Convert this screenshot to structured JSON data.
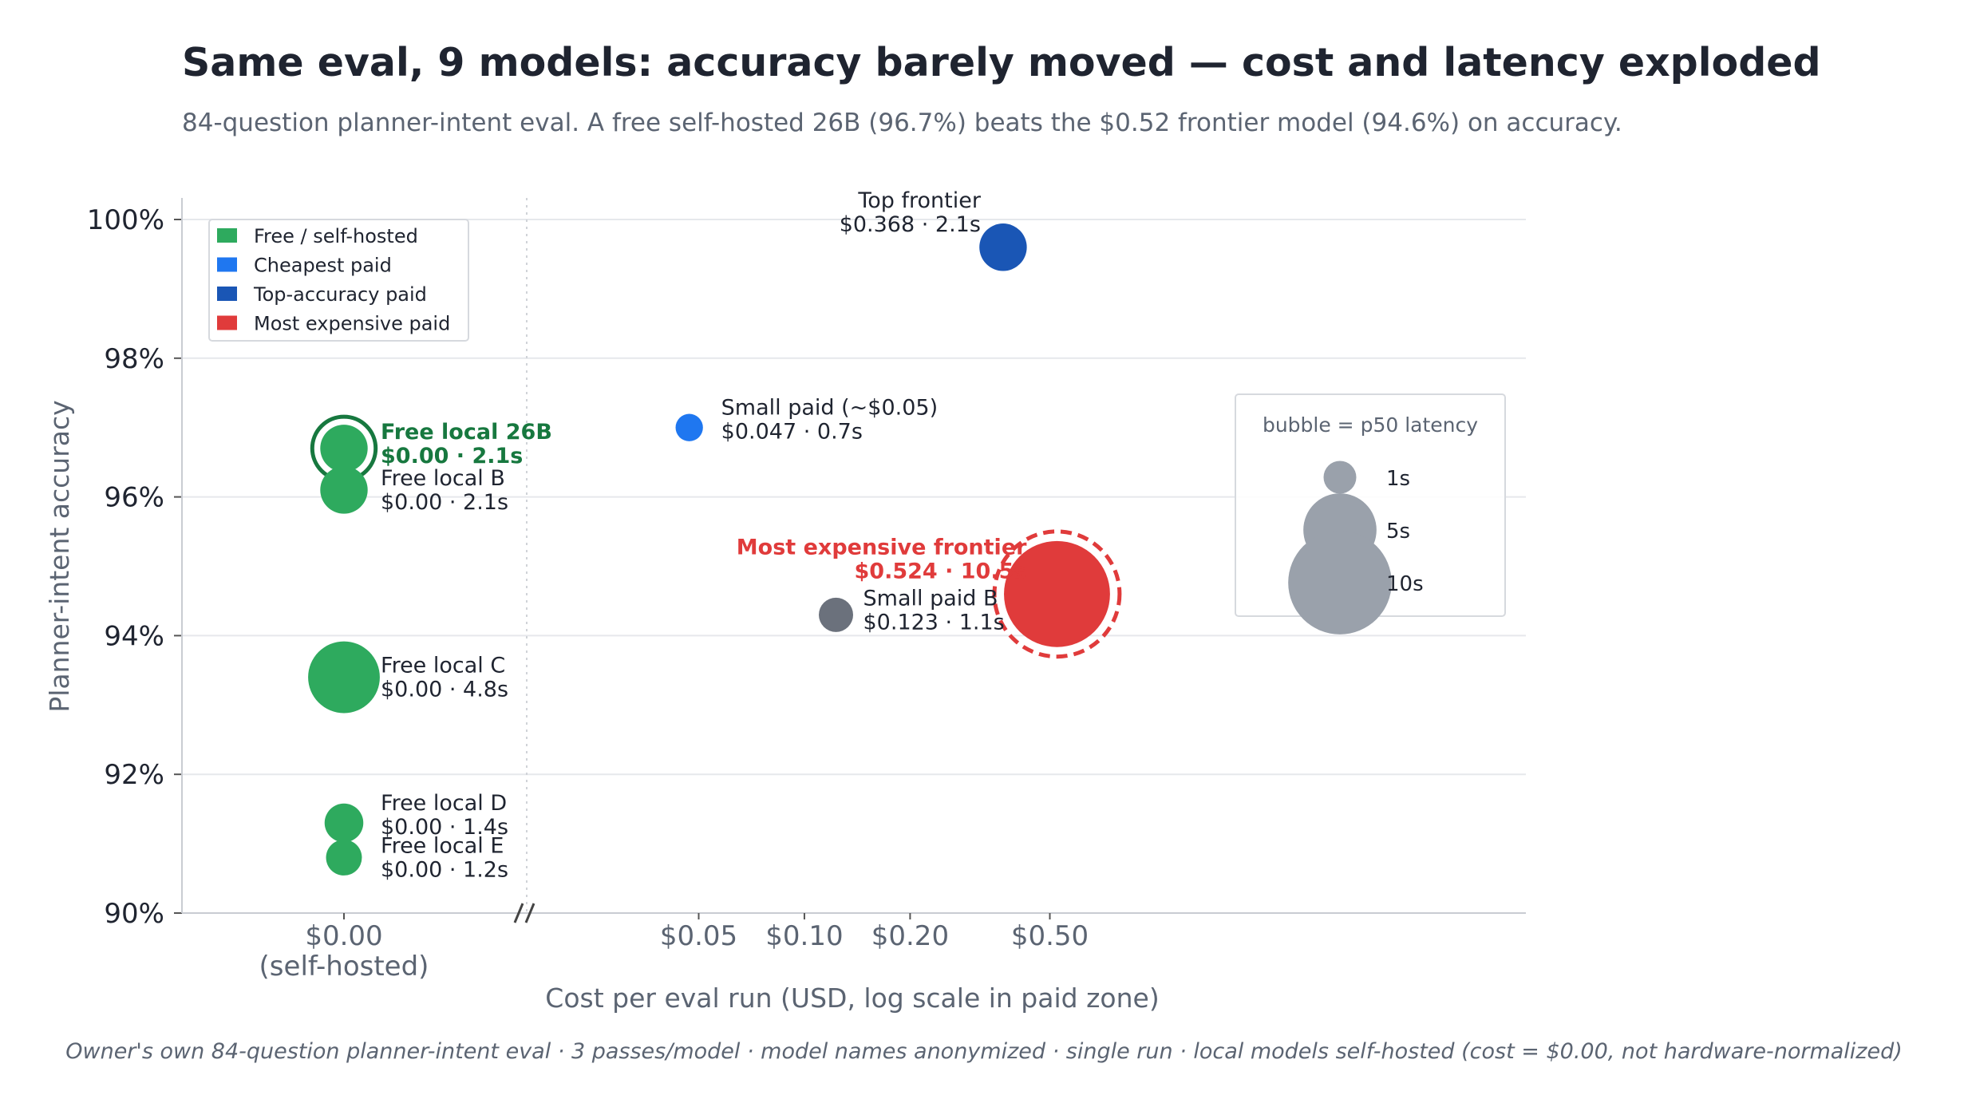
{
  "title": "Same eval, 9 models: accuracy barely moved — cost and latency exploded",
  "subtitle": "84-question planner-intent eval. A free self-hosted 26B (96.7%) beats the $0.52 frontier model (94.6%) on accuracy.",
  "footnote": "Owner's own 84-question planner-intent eval  ·  3 passes/model  ·  model names anonymized  ·  single run  ·  local models self-hosted (cost = $0.00, not hardware-normalized)",
  "chart_data": {
    "type": "scatter",
    "encoding": "bubble size = p50 latency",
    "xlabel": "Cost per eval run  (USD, log scale in paid zone)",
    "ylabel": "Planner-intent accuracy",
    "x_scale": "log (paid zone); $0.00 shown in separate self-hosted zone",
    "ylim": [
      90,
      100
    ],
    "yticks": [
      "90%",
      "92%",
      "94%",
      "96%",
      "98%",
      "100%"
    ],
    "xticks": [
      {
        "label": "$0.00",
        "sublabel": "(self-hosted)"
      },
      {
        "label": "$0.05"
      },
      {
        "label": "$0.10"
      },
      {
        "label": "$0.20"
      },
      {
        "label": "$0.50"
      }
    ],
    "grid": "horizontal",
    "colors": {
      "free": "#2eaa5e",
      "cheapest": "#1f77f0",
      "top": "#1a56b5",
      "expensive": "#e03b3b",
      "other": "#6b717c",
      "highlight_free": "#17783f"
    },
    "points": [
      {
        "name": "Free local 26B",
        "detail": "$0.00 · 2.1s",
        "cost": 0.0,
        "accuracy": 96.7,
        "latency_s": 2.1,
        "group": "free",
        "highlight": true
      },
      {
        "name": "Free local B",
        "detail": "$0.00 · 2.1s",
        "cost": 0.0,
        "accuracy": 96.1,
        "latency_s": 2.1,
        "group": "free"
      },
      {
        "name": "Free local C",
        "detail": "$0.00 · 4.8s",
        "cost": 0.0,
        "accuracy": 93.4,
        "latency_s": 4.8,
        "group": "free"
      },
      {
        "name": "Free local D",
        "detail": "$0.00 · 1.4s",
        "cost": 0.0,
        "accuracy": 91.3,
        "latency_s": 1.4,
        "group": "free"
      },
      {
        "name": "Free local E",
        "detail": "$0.00 · 1.2s",
        "cost": 0.0,
        "accuracy": 90.8,
        "latency_s": 1.2,
        "group": "free"
      },
      {
        "name": "Small paid (~$0.05)",
        "detail": "$0.047 · 0.7s",
        "cost": 0.047,
        "accuracy": 97.0,
        "latency_s": 0.7,
        "group": "cheapest"
      },
      {
        "name": "Small paid B",
        "detail": "$0.123 · 1.1s",
        "cost": 0.123,
        "accuracy": 94.3,
        "latency_s": 1.1,
        "group": "other"
      },
      {
        "name": "Top frontier",
        "detail": "$0.368 · 2.1s",
        "cost": 0.368,
        "accuracy": 99.6,
        "latency_s": 2.1,
        "group": "top"
      },
      {
        "name": "Most expensive frontier",
        "detail": "$0.524 · 10.5s",
        "cost": 0.524,
        "accuracy": 94.6,
        "latency_s": 10.5,
        "group": "expensive",
        "highlight": true
      }
    ],
    "legend": {
      "placement": "upper-left",
      "items": [
        {
          "label": "Free / self-hosted",
          "color": "#2eaa5e"
        },
        {
          "label": "Cheapest paid",
          "color": "#1f77f0"
        },
        {
          "label": "Top-accuracy paid",
          "color": "#1a56b5"
        },
        {
          "label": "Most expensive paid",
          "color": "#e03b3b"
        }
      ]
    },
    "size_legend": {
      "title": "bubble = p50 latency",
      "placement": "right",
      "items": [
        {
          "label": "1s",
          "latency_s": 1
        },
        {
          "label": "5s",
          "latency_s": 5
        },
        {
          "label": "10s",
          "latency_s": 10
        }
      ]
    }
  }
}
